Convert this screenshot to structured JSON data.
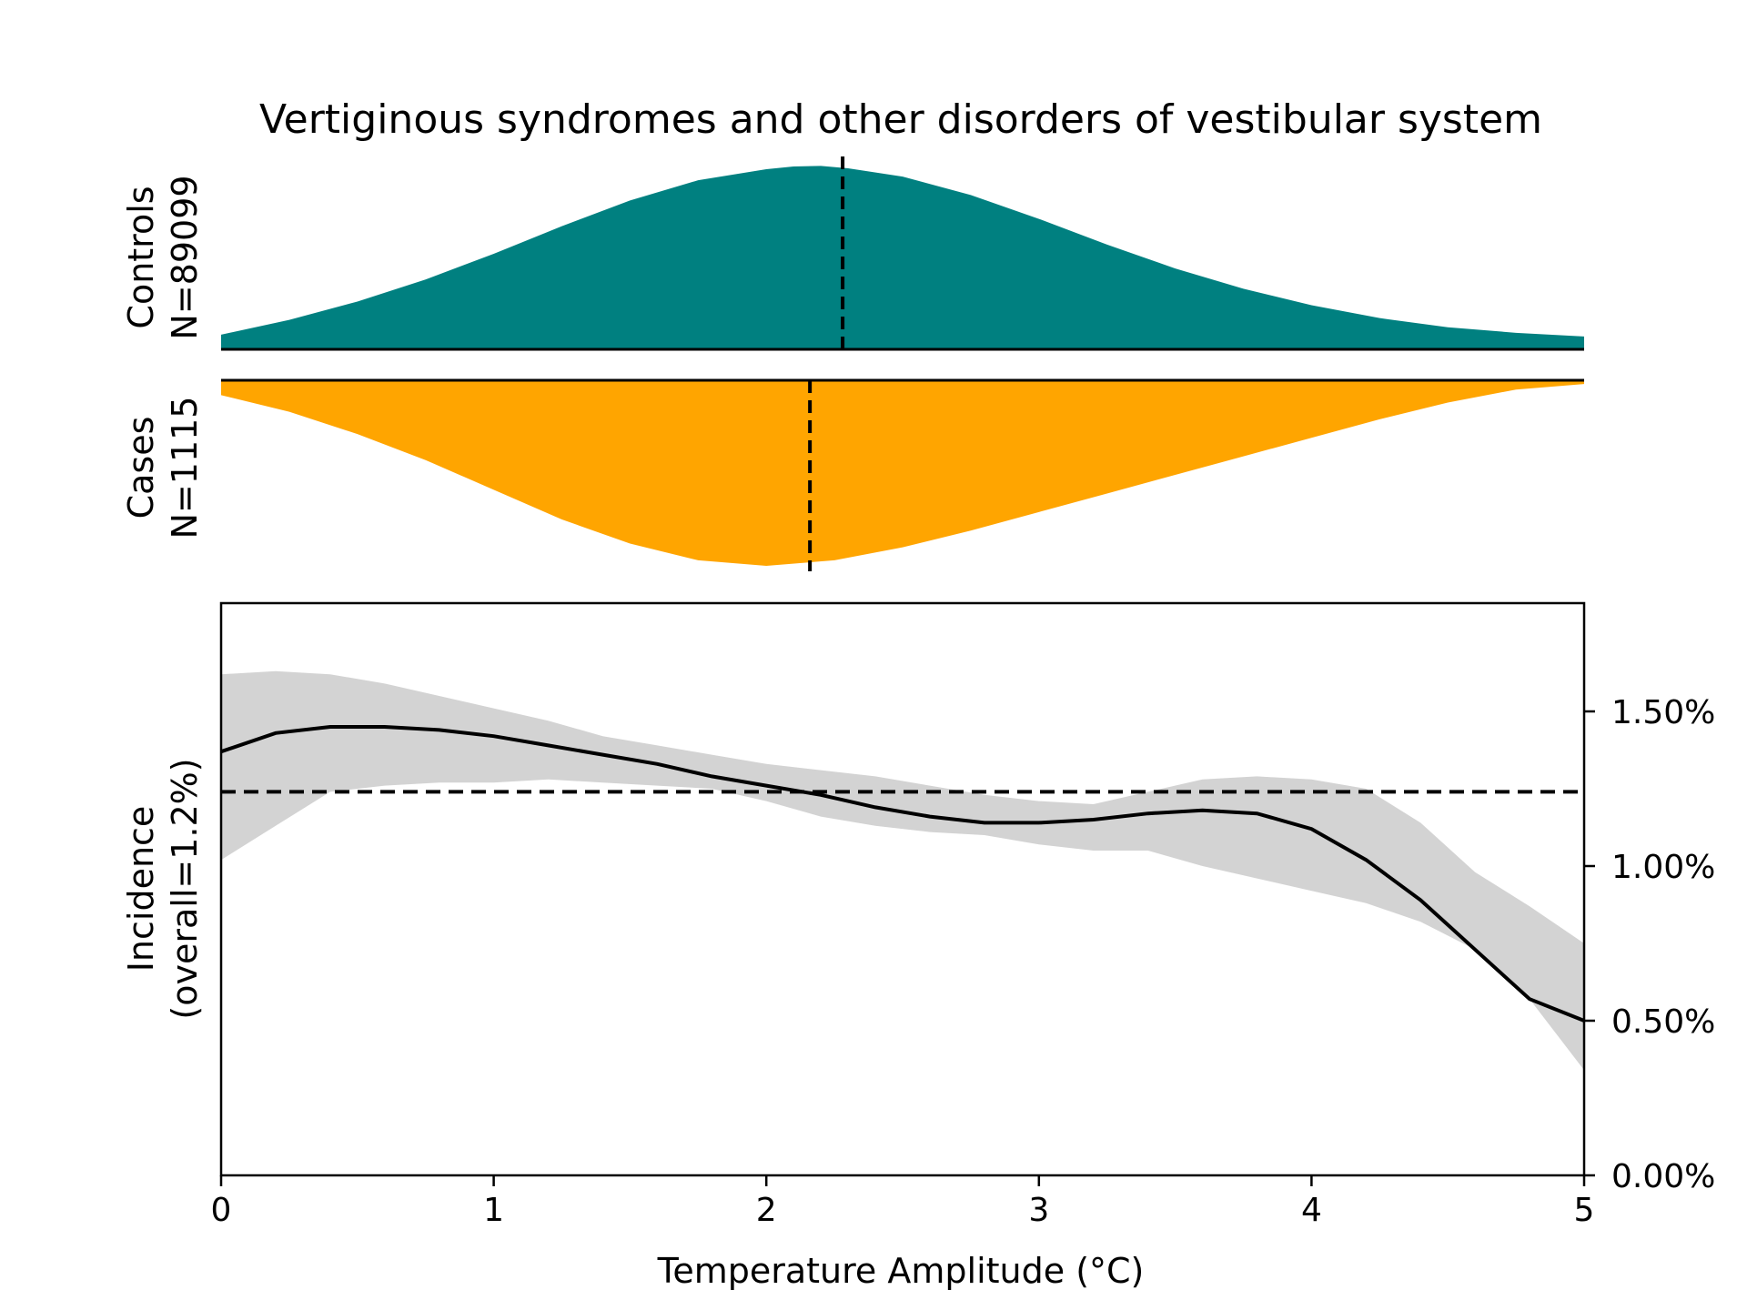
{
  "chart_data": {
    "type": "area",
    "title": "Vertiginous syndromes and other disorders of vestibular system",
    "colors": {
      "controls": "#008080",
      "cases": "#FFA500",
      "band": "#D3D3D3",
      "line": "#000000"
    },
    "controls": {
      "label": "Controls",
      "n_label": "N=89099",
      "median": 2.28,
      "x": [
        0,
        0.25,
        0.5,
        0.75,
        1.0,
        1.25,
        1.5,
        1.75,
        2.0,
        2.1,
        2.2,
        2.3,
        2.5,
        2.75,
        3.0,
        3.25,
        3.5,
        3.75,
        4.0,
        4.25,
        4.5,
        4.75,
        5.0
      ],
      "density": [
        0.08,
        0.16,
        0.26,
        0.38,
        0.52,
        0.67,
        0.81,
        0.92,
        0.98,
        0.995,
        0.998,
        0.985,
        0.94,
        0.84,
        0.71,
        0.57,
        0.44,
        0.33,
        0.24,
        0.17,
        0.12,
        0.09,
        0.07
      ]
    },
    "cases": {
      "label": "Cases",
      "n_label": "N=1115",
      "median": 2.16,
      "x": [
        0,
        0.25,
        0.5,
        0.75,
        1.0,
        1.25,
        1.5,
        1.75,
        2.0,
        2.25,
        2.5,
        2.75,
        3.0,
        3.25,
        3.5,
        3.75,
        4.0,
        4.25,
        4.5,
        4.75,
        5.0
      ],
      "density": [
        0.08,
        0.17,
        0.29,
        0.43,
        0.59,
        0.75,
        0.88,
        0.97,
        1.0,
        0.97,
        0.9,
        0.81,
        0.71,
        0.61,
        0.51,
        0.41,
        0.31,
        0.21,
        0.12,
        0.05,
        0.02
      ]
    },
    "incidence": {
      "ylabel_line1": "Incidence",
      "ylabel_line2": "(overall=1.2%)",
      "xlabel": "Temperature Amplitude (°C)",
      "xlim": [
        0,
        5
      ],
      "ylim": [
        0,
        0.0185
      ],
      "overall": 0.0124,
      "xticks": [
        0,
        1,
        2,
        3,
        4,
        5
      ],
      "xtick_labels": [
        "0",
        "1",
        "2",
        "3",
        "4",
        "5"
      ],
      "yticks": [
        0,
        0.005,
        0.01,
        0.015
      ],
      "ytick_labels": [
        "0.00%",
        "0.50%",
        "1.00%",
        "1.50%"
      ],
      "x": [
        0,
        0.2,
        0.4,
        0.6,
        0.8,
        1.0,
        1.2,
        1.4,
        1.6,
        1.8,
        2.0,
        2.2,
        2.4,
        2.6,
        2.8,
        3.0,
        3.2,
        3.4,
        3.6,
        3.8,
        4.0,
        4.2,
        4.4,
        4.6,
        4.8,
        5.0
      ],
      "mean": [
        0.0137,
        0.0143,
        0.0145,
        0.0145,
        0.0144,
        0.0142,
        0.0139,
        0.0136,
        0.0133,
        0.0129,
        0.0126,
        0.0123,
        0.0119,
        0.0116,
        0.0114,
        0.0114,
        0.0115,
        0.0117,
        0.0118,
        0.0117,
        0.0112,
        0.0102,
        0.0089,
        0.0073,
        0.0057,
        0.005
      ],
      "lower": [
        0.0102,
        0.0113,
        0.0124,
        0.0126,
        0.0127,
        0.0127,
        0.0128,
        0.0127,
        0.0126,
        0.0125,
        0.0121,
        0.0116,
        0.0113,
        0.0111,
        0.011,
        0.0107,
        0.0105,
        0.0105,
        0.01,
        0.0096,
        0.0092,
        0.0088,
        0.0082,
        0.0073,
        0.0057,
        0.0034
      ],
      "upper": [
        0.0162,
        0.0163,
        0.0162,
        0.0159,
        0.0155,
        0.0151,
        0.0147,
        0.0142,
        0.0139,
        0.0136,
        0.0133,
        0.0131,
        0.0129,
        0.0126,
        0.0123,
        0.0121,
        0.012,
        0.0124,
        0.0128,
        0.0129,
        0.0128,
        0.0125,
        0.0114,
        0.0098,
        0.0087,
        0.0075
      ]
    }
  }
}
